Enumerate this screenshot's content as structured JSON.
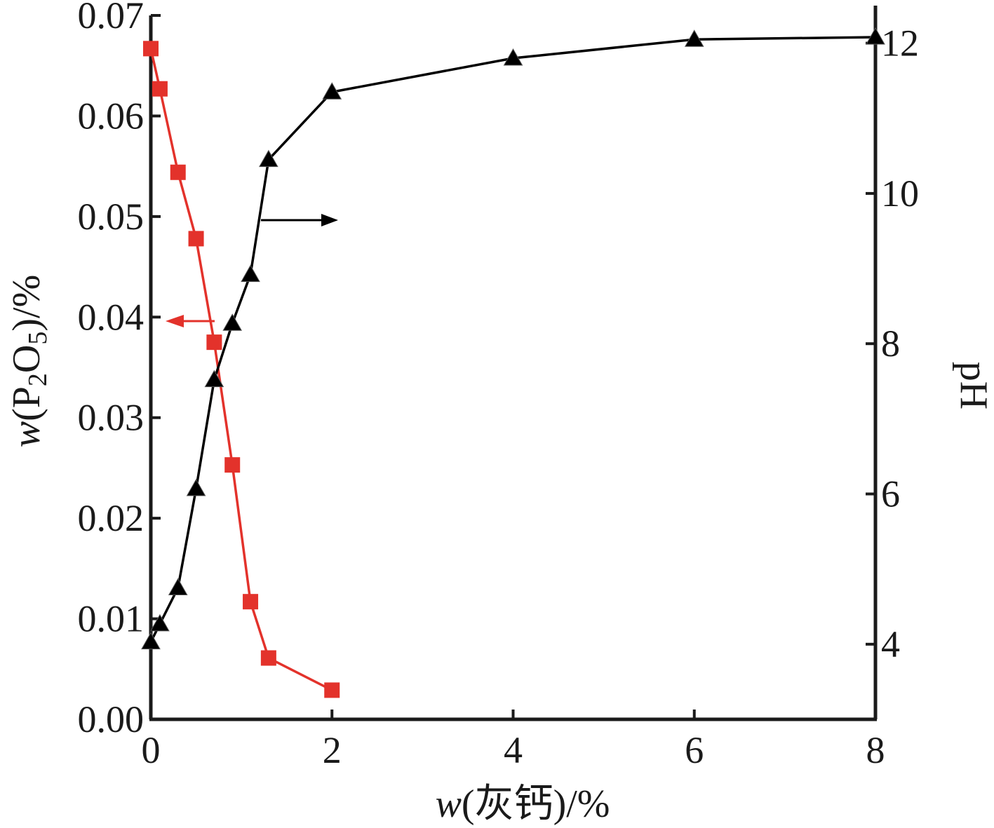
{
  "chart_data": {
    "type": "line",
    "xlabel": {
      "italic": "w",
      "rest": "(灰钙)/%"
    },
    "ylabel_left": {
      "italic": "w",
      "pre": "(P",
      "sub1": "2",
      "mid": "O",
      "sub2": "5",
      "post": ")/%"
    },
    "ylabel_right": "pH",
    "xlim": [
      0,
      8
    ],
    "ylim_left": [
      0,
      0.07
    ],
    "ylim_right": [
      3.0,
      12.5
    ],
    "x_ticks": [
      "0",
      "2",
      "4",
      "6",
      "8"
    ],
    "y_left_ticks": [
      "0.00",
      "0.01",
      "0.02",
      "0.03",
      "0.04",
      "0.05",
      "0.06",
      "0.07"
    ],
    "y_right_ticks": [
      "4",
      "6",
      "8",
      "10",
      "12"
    ],
    "series": [
      {
        "axis": "left",
        "color": "#e3322b",
        "marker": "square",
        "x": [
          0,
          0.1,
          0.3,
          0.5,
          0.7,
          0.9,
          1.1,
          1.3,
          2.0
        ],
        "y": [
          0.0667,
          0.0627,
          0.0544,
          0.0478,
          0.0375,
          0.0253,
          0.0117,
          0.0061,
          0.0029
        ]
      },
      {
        "axis": "right",
        "color": "#000000",
        "marker": "triangle",
        "x": [
          0,
          0.1,
          0.3,
          0.5,
          0.7,
          0.9,
          1.1,
          1.3,
          2.0,
          4.0,
          6.0,
          8.0
        ],
        "y": [
          4.03,
          4.27,
          4.75,
          6.07,
          7.52,
          8.27,
          8.92,
          10.45,
          11.35,
          11.8,
          12.05,
          12.08
        ]
      }
    ],
    "annotations": [
      {
        "type": "arrow",
        "color": "#000000",
        "direction": "right",
        "series": 1
      },
      {
        "type": "arrow",
        "color": "#e3322b",
        "direction": "left",
        "series": 0
      }
    ]
  }
}
